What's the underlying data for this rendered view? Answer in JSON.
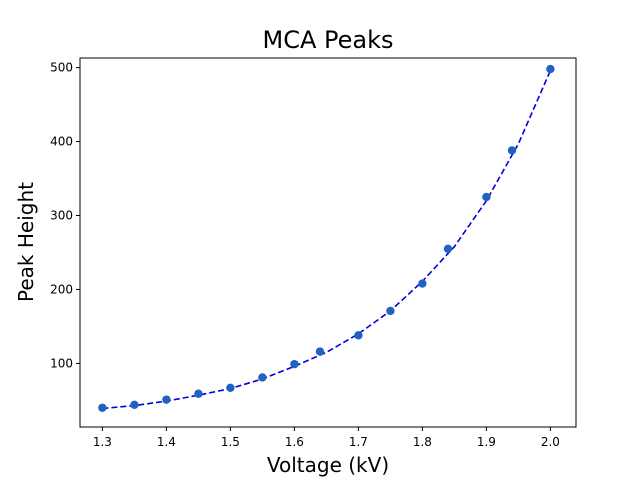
{
  "chart_data": {
    "type": "scatter",
    "title": "MCA Peaks",
    "xlabel": "Voltage (kV)",
    "ylabel": "Peak Height",
    "xlim": [
      1.265,
      2.04
    ],
    "ylim": [
      14,
      513
    ],
    "xticks": [
      1.3,
      1.4,
      1.5,
      1.6,
      1.7,
      1.8,
      1.9,
      2.0
    ],
    "xtick_labels": [
      "1.3",
      "1.4",
      "1.5",
      "1.6",
      "1.7",
      "1.8",
      "1.9",
      "2.0"
    ],
    "yticks": [
      100,
      200,
      300,
      400,
      500
    ],
    "ytick_labels": [
      "100",
      "200",
      "300",
      "400",
      "500"
    ],
    "grid": false,
    "series": [
      {
        "kind": "points",
        "color": "#1f62c2",
        "x": [
          1.3,
          1.35,
          1.4,
          1.45,
          1.5,
          1.55,
          1.6,
          1.64,
          1.7,
          1.75,
          1.8,
          1.84,
          1.9,
          1.94,
          2.0
        ],
        "y": [
          40,
          44,
          51,
          59,
          67,
          81,
          99,
          116,
          138,
          171,
          208,
          255,
          325,
          388,
          498
        ]
      },
      {
        "kind": "fit",
        "style": "dashed",
        "color": "#0000dd",
        "x": [
          1.3,
          1.35,
          1.4,
          1.45,
          1.5,
          1.55,
          1.6,
          1.65,
          1.7,
          1.75,
          1.8,
          1.85,
          1.9,
          1.95,
          2.0
        ],
        "y": [
          39,
          43,
          49,
          57,
          66,
          79,
          96,
          115,
          140,
          171,
          211,
          258,
          320,
          397,
          496
        ]
      }
    ]
  }
}
